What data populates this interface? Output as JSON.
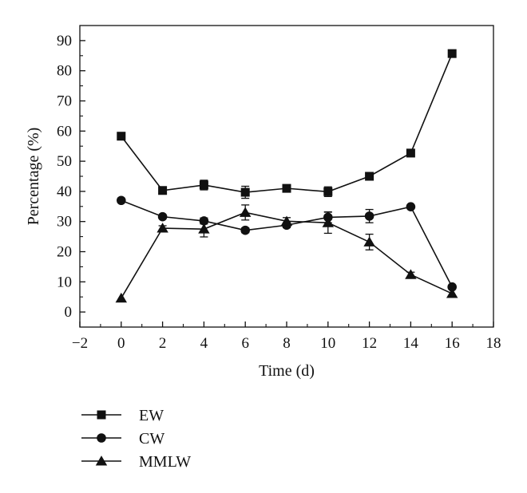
{
  "chart_data": {
    "type": "line",
    "title": "",
    "xlabel": "Time (d)",
    "ylabel": "Percentage (%)",
    "xlim": [
      -2,
      18
    ],
    "ylim": [
      -5,
      95
    ],
    "x_ticks": [
      -2,
      0,
      2,
      4,
      6,
      8,
      10,
      12,
      14,
      16,
      18
    ],
    "y_ticks": [
      0,
      10,
      20,
      30,
      40,
      50,
      60,
      70,
      80,
      90
    ],
    "grid": false,
    "legend_position": "bottom-left",
    "x": [
      0,
      2,
      4,
      6,
      8,
      10,
      12,
      14,
      16
    ],
    "series": [
      {
        "name": "EW",
        "marker": "square",
        "color": "#111111",
        "values": [
          58.3,
          40.3,
          42.1,
          39.7,
          41.0,
          39.9,
          45.0,
          52.7,
          85.7
        ],
        "errors": [
          0.8,
          0.8,
          1.6,
          2.0,
          0.8,
          1.6,
          0.8,
          0.6,
          0.8
        ]
      },
      {
        "name": "CW",
        "marker": "circle",
        "color": "#111111",
        "values": [
          37.0,
          31.6,
          30.2,
          27.1,
          28.8,
          31.4,
          31.8,
          34.9,
          8.3
        ],
        "errors": [
          0.6,
          0.6,
          1.0,
          0.8,
          0.8,
          1.8,
          2.2,
          0.6,
          0.6
        ]
      },
      {
        "name": "MMLW",
        "marker": "triangle",
        "color": "#111111",
        "values": [
          4.6,
          27.8,
          27.5,
          33.0,
          30.1,
          29.6,
          23.2,
          12.4,
          6.1
        ],
        "errors": [
          0.6,
          0.8,
          2.6,
          2.5,
          1.2,
          3.5,
          2.6,
          0.8,
          0.6
        ]
      }
    ]
  }
}
